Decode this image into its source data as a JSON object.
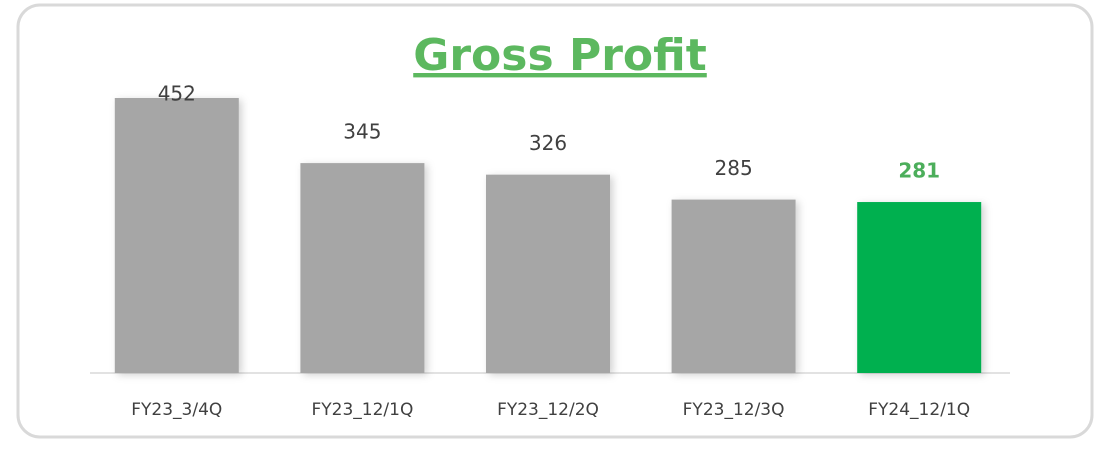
{
  "chart_data": {
    "type": "bar",
    "title": "Gross Profit",
    "categories": [
      "FY23_3/4Q",
      "FY23_12/1Q",
      "FY23_12/2Q",
      "FY23_12/3Q",
      "FY24_12/1Q"
    ],
    "values": [
      452,
      345,
      326,
      285,
      281
    ],
    "colors": [
      "#a6a6a6",
      "#a6a6a6",
      "#a6a6a6",
      "#a6a6a6",
      "#00b050"
    ],
    "label_colors": [
      "#404040",
      "#404040",
      "#404040",
      "#404040",
      "#4cae5b"
    ]
  }
}
